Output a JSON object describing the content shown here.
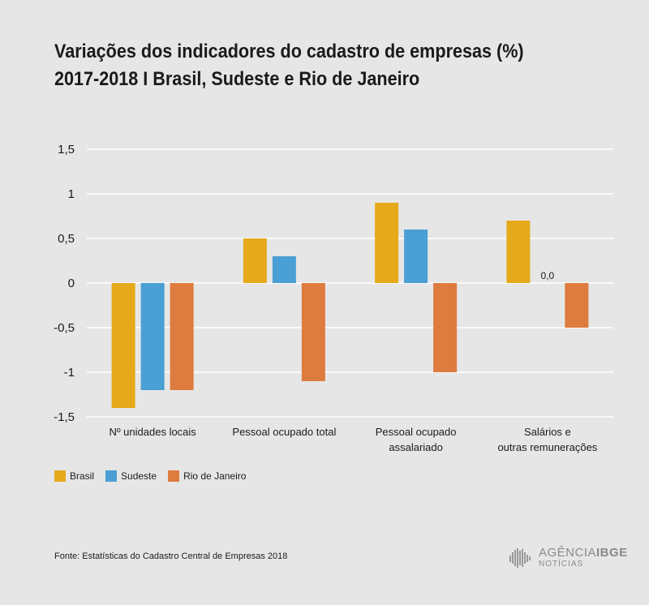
{
  "header": {
    "title": "Variações dos indicadores do cadastro de empresas (%)",
    "subtitle_years": "2017-2018",
    "subtitle_rest": " I Brasil, Sudeste e Rio de Janeiro"
  },
  "chart_data": {
    "type": "bar",
    "categories": [
      [
        "Nº unidades locais"
      ],
      [
        "Pessoal ocupado total"
      ],
      [
        "Pessoal ocupado",
        "assalariado"
      ],
      [
        "Salários e",
        "outras remunerações"
      ]
    ],
    "series": [
      {
        "name": "Brasil",
        "color": "#e6a91a",
        "values": [
          -1.4,
          0.5,
          0.9,
          0.7
        ]
      },
      {
        "name": "Sudeste",
        "color": "#4a9fd4",
        "values": [
          -1.2,
          0.3,
          0.6,
          0.0
        ]
      },
      {
        "name": "Rio de Janeiro",
        "color": "#de7b3f",
        "values": [
          -1.2,
          -1.1,
          -1.0,
          -0.5
        ]
      }
    ],
    "data_labels": [
      {
        "category_index": 3,
        "series_index": 1,
        "text": "0,0"
      }
    ],
    "y_ticks": [
      {
        "value": 1.5,
        "label": "1,5"
      },
      {
        "value": 1,
        "label": "1"
      },
      {
        "value": 0.5,
        "label": "0,5"
      },
      {
        "value": 0,
        "label": "0"
      },
      {
        "value": -0.5,
        "label": "-0,5"
      },
      {
        "value": -1,
        "label": "-1"
      },
      {
        "value": -1.5,
        "label": "-1,5"
      }
    ],
    "ylim": [
      -1.5,
      1.5
    ],
    "grid": true,
    "legend_position": "bottom-left"
  },
  "footer": {
    "source": "Fonte: Estatísticas do Cadastro Central de Empresas 2018",
    "brand_name_a": "AGÊNCIA",
    "brand_name_b": "IBGE",
    "brand_sub": "NOTÍCIAS"
  },
  "icons": {
    "brand_logo": "ibge-bars-icon"
  }
}
